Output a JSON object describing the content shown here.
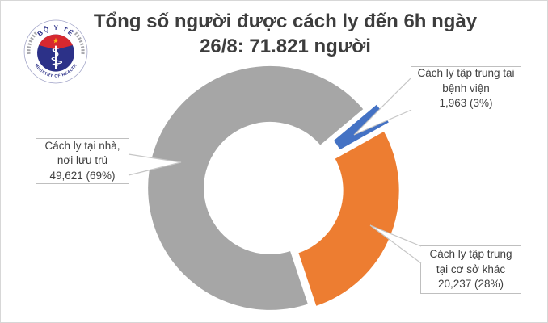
{
  "page": {
    "background": "#ffffff",
    "frame_border": "#d7d7d7"
  },
  "header": {
    "title_line1": "Tổng số người được cách ly đến 6h ngày",
    "title_line2": "26/8: 71.821 người",
    "title_color": "#3d3d3d"
  },
  "logo": {
    "arc_text_top": "BỘ Y TẾ",
    "arc_text_bottom": "MINISTRY OF HEALTH",
    "colors": {
      "navy": "#2c3188",
      "red": "#d7282f",
      "star": "#fcb514",
      "staff": "#ffffff",
      "laurel": "#a6a6ab"
    }
  },
  "chart_data": {
    "type": "donut",
    "title": "Tổng số người được cách ly đến 6h ngày 26/8: 71.821 người",
    "total_display": "71.821",
    "unit": "người",
    "start_angle_deg": 50,
    "hole_ratio": 0.53,
    "legend": "none (callout data labels)",
    "slices": [
      {
        "name": "hospital",
        "label_line1": "Cách ly tập trung tại",
        "label_line2": "bệnh viện",
        "value_display": "1,963 (3%)",
        "value": 1963,
        "percent": 3,
        "color": "#4472c4"
      },
      {
        "name": "other-facilities",
        "label_line1": "Cách ly tập trung",
        "label_line2": "tại cơ sở khác",
        "value_display": "20,237 (28%)",
        "value": 20237,
        "percent": 28,
        "color": "#ed7d31"
      },
      {
        "name": "home",
        "label_line1": "Cách ly tại nhà,",
        "label_line2": "nơi lưu trú",
        "value_display": "49,621 (69%)",
        "value": 49621,
        "percent": 69,
        "color": "#a6a6a6"
      }
    ]
  }
}
